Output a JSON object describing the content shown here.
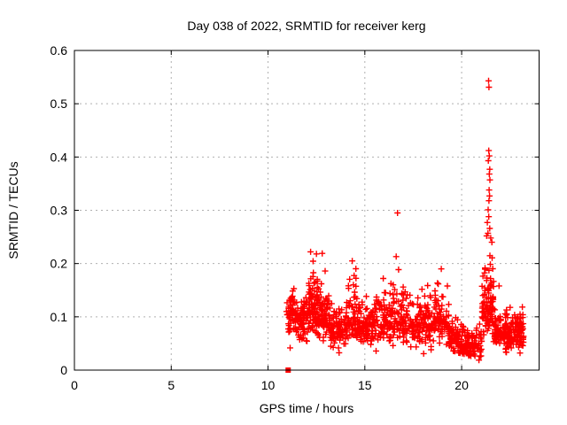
{
  "window": {
    "background": "#ffffff"
  },
  "chart_data": {
    "type": "scatter",
    "title": "Day 038 of 2022, SRMTID for receiver kerg",
    "xlabel": "GPS time / hours",
    "ylabel": "SRMTID / TECUs",
    "xlim": [
      0,
      24
    ],
    "ylim": [
      0,
      0.6
    ],
    "xticks": [
      0,
      5,
      10,
      15,
      20
    ],
    "yticks": [
      "0",
      "0.1",
      "0.2",
      "0.3",
      "0.4",
      "0.5",
      "0.6"
    ],
    "grid": true,
    "legend": "none",
    "marker": "plus",
    "marker_color": "#ff0000",
    "grid_color": "#b0b0b0",
    "frame_color": "#000000",
    "seed": 7,
    "data_span_hours": [
      10.95,
      23.2
    ],
    "cluster_segments_comment": "each segment: [x_start_hr, x_end_hr, n_points, y_min, y_mode, y_max] estimated from pixels",
    "cluster_segments": [
      [
        10.95,
        11.35,
        50,
        0.04,
        0.1,
        0.165
      ],
      [
        11.35,
        12.05,
        85,
        0.035,
        0.095,
        0.15
      ],
      [
        12.05,
        12.55,
        80,
        0.05,
        0.115,
        0.21
      ],
      [
        12.55,
        13.25,
        85,
        0.04,
        0.1,
        0.19
      ],
      [
        13.25,
        14.15,
        95,
        0.03,
        0.08,
        0.145
      ],
      [
        14.15,
        14.55,
        45,
        0.04,
        0.1,
        0.21
      ],
      [
        14.55,
        15.4,
        90,
        0.035,
        0.085,
        0.155
      ],
      [
        15.4,
        16.35,
        100,
        0.035,
        0.09,
        0.175
      ],
      [
        16.35,
        16.95,
        55,
        0.04,
        0.1,
        0.215
      ],
      [
        16.95,
        18.6,
        160,
        0.03,
        0.088,
        0.175
      ],
      [
        18.6,
        19.35,
        75,
        0.035,
        0.095,
        0.19
      ],
      [
        19.35,
        19.8,
        55,
        0.025,
        0.06,
        0.115
      ],
      [
        19.8,
        21.05,
        130,
        0.015,
        0.045,
        0.1
      ],
      [
        21.05,
        21.65,
        100,
        0.05,
        0.12,
        0.27
      ],
      [
        21.65,
        22.4,
        95,
        0.03,
        0.07,
        0.135
      ],
      [
        22.4,
        23.2,
        110,
        0.025,
        0.065,
        0.125
      ]
    ],
    "outlier_points": [
      [
        16.69,
        0.295
      ],
      [
        21.39,
        0.543
      ],
      [
        21.41,
        0.531
      ],
      [
        21.4,
        0.412
      ],
      [
        21.43,
        0.402
      ],
      [
        21.38,
        0.393
      ],
      [
        21.45,
        0.377
      ],
      [
        21.43,
        0.368
      ],
      [
        21.46,
        0.357
      ],
      [
        21.42,
        0.338
      ],
      [
        21.44,
        0.327
      ],
      [
        21.41,
        0.318
      ],
      [
        21.37,
        0.301
      ],
      [
        21.4,
        0.288
      ],
      [
        21.33,
        0.277
      ],
      [
        21.45,
        0.266
      ],
      [
        21.36,
        0.257
      ],
      [
        21.5,
        0.248
      ],
      [
        21.29,
        0.252
      ],
      [
        21.56,
        0.24
      ],
      [
        21.93,
        0.158
      ],
      [
        12.8,
        0.219
      ],
      [
        12.5,
        0.218
      ],
      [
        12.2,
        0.222
      ],
      [
        14.35,
        0.205
      ],
      [
        18.95,
        0.19
      ],
      [
        16.62,
        0.213
      ],
      [
        15.95,
        0.172
      ],
      [
        12.95,
        0.186
      ]
    ],
    "special_marker": {
      "shape": "filled-square",
      "x": 11.04,
      "y": 0,
      "color": "#ff0000"
    }
  }
}
